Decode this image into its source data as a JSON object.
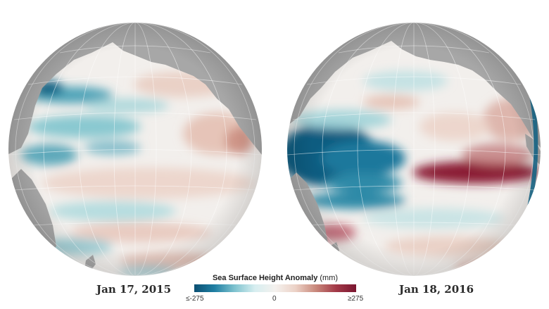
{
  "map": {
    "left": {
      "date": "Jan 17, 2015"
    },
    "right": {
      "date": "Jan 18, 2016"
    }
  },
  "legend": {
    "title": "Sea Surface Height Anomaly",
    "unit": "(mm)",
    "min_label": "≤-275",
    "mid_label": "0",
    "max_label": "≥275"
  },
  "colors": {
    "land": "#a7a7a7",
    "negative": "#0b4f72",
    "neutral": "#f4f1ee",
    "positive": "#7a1530"
  }
}
